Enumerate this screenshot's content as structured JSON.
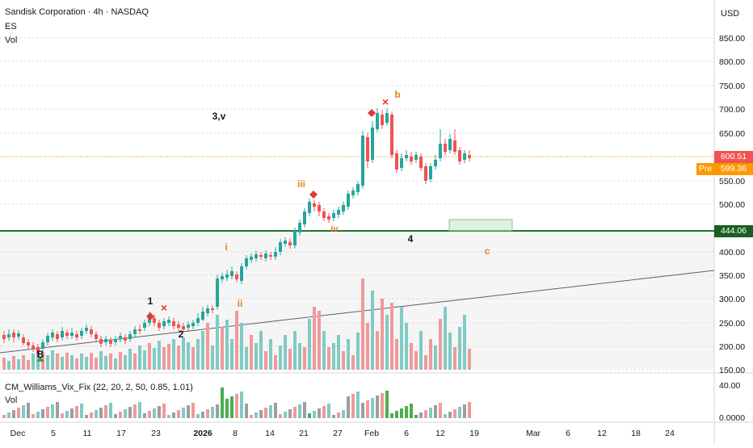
{
  "header": {
    "title": "Sandisk Corporation · 4h · NASDAQ",
    "series_es": "ES",
    "series_vol": "Vol",
    "currency": "USD"
  },
  "price_scale": {
    "labels": [
      "850.00",
      "800.00",
      "750.00",
      "700.00",
      "650.00",
      "600.00",
      "550.00",
      "500.00",
      "400.00",
      "350.00",
      "300.00",
      "250.00",
      "200.00",
      "150.00"
    ],
    "last_price": "600.51",
    "pre_label": "Pre",
    "pre_price": "599.36",
    "level_price": "444.06"
  },
  "indicator": {
    "title": "CM_Williams_Vix_Fix (22, 20, 2, 50, 0.85, 1.01)",
    "vol_label": "Vol",
    "scale_labels": [
      "40.00",
      "0.0000"
    ]
  },
  "time_axis": {
    "labels": [
      "Dec",
      "5",
      "11",
      "17",
      "23",
      "2026",
      "8",
      "14",
      "21",
      "27",
      "Feb",
      "6",
      "12",
      "19",
      "Mar",
      "6",
      "12",
      "18",
      "24"
    ]
  },
  "annotations": {
    "wave_labels": [
      "3,v",
      "b",
      "iii",
      "i",
      "iv",
      "4",
      "c",
      "ii",
      "1",
      "2",
      "B"
    ],
    "marker_x": "×"
  },
  "colors": {
    "up": "#26a69a",
    "down": "#ef5350",
    "level_line": "#1b7a2a",
    "orange": "#e6801a",
    "last_price_tag": "#ef5350",
    "pre_tag": "#ff9800",
    "level_tag": "#1b5e20"
  }
}
